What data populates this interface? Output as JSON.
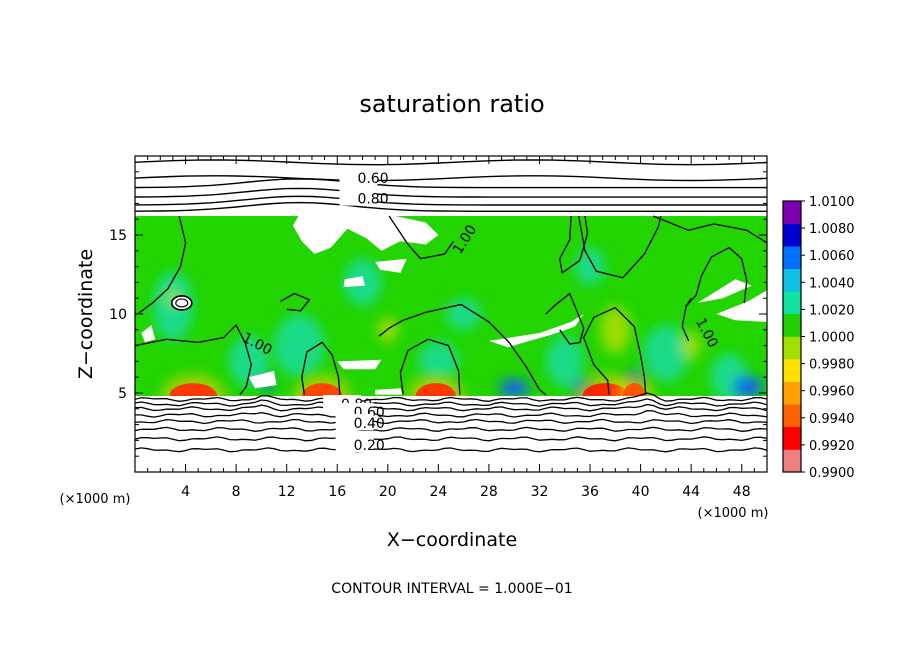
{
  "chart_data": {
    "type": "heatmap",
    "title": "saturation ratio",
    "xlabel": "X−coordinate",
    "ylabel": "Z−coordinate",
    "x_units": "(×1000 m)",
    "z_units": "(×1000 m)",
    "xlim": [
      0,
      50
    ],
    "ylim": [
      0,
      20
    ],
    "x_ticks": [
      "4",
      "8",
      "12",
      "16",
      "20",
      "24",
      "28",
      "32",
      "36",
      "40",
      "44",
      "48"
    ],
    "y_ticks": [
      "5",
      "10",
      "15"
    ],
    "colorbar": {
      "min": 0.99,
      "max": 1.01,
      "ticks": [
        "1.0100",
        "1.0080",
        "1.0060",
        "1.0040",
        "1.0020",
        "1.0000",
        "0.9980",
        "0.9960",
        "0.9940",
        "0.9920",
        "0.9900"
      ],
      "colors": [
        "#f08080",
        "#ff0000",
        "#ff6000",
        "#ffa000",
        "#ffe000",
        "#a0e000",
        "#20d000",
        "#10e0a0",
        "#10c0e0",
        "#0070ff",
        "#0000d0",
        "#7a00b0"
      ]
    },
    "shaded_layer_z": [
      4.8,
      16.2
    ],
    "contour_labels": [
      "0.60",
      "0.80",
      "1.00",
      "1.00",
      "1.00",
      "0.80",
      "0.60",
      "0.40",
      "0.20"
    ],
    "contour_interval_text": "CONTOUR INTERVAL = 1.000E−01"
  }
}
